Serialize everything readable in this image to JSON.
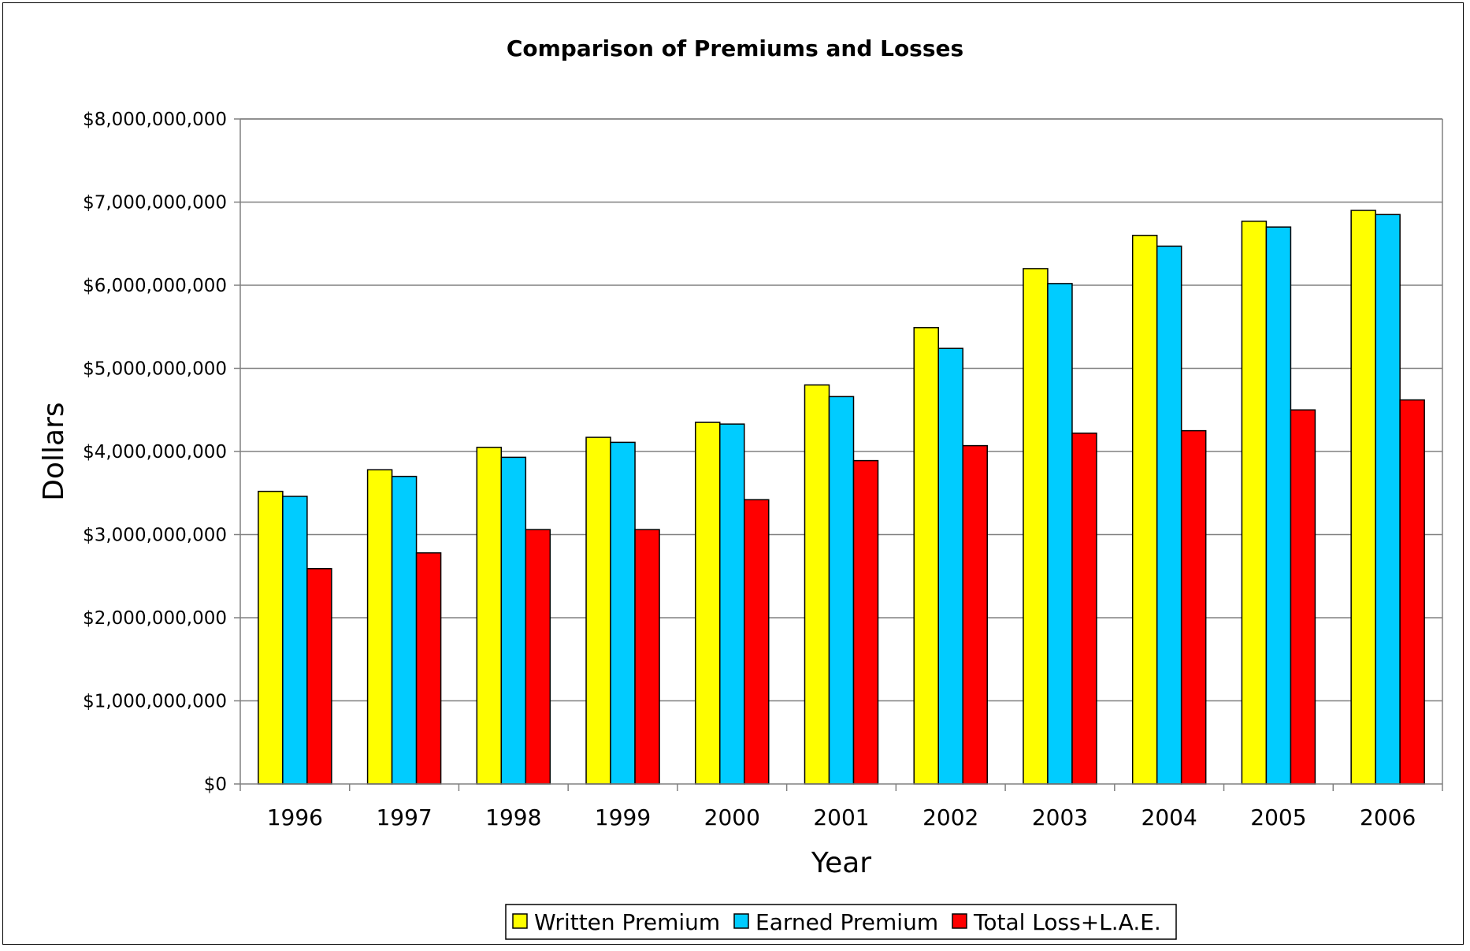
{
  "chart_data": {
    "type": "bar",
    "title": "Comparison of Premiums and Losses",
    "xlabel": "Year",
    "ylabel": "Dollars",
    "ylim": [
      0,
      8000000000
    ],
    "yticks": [
      0,
      1000000000,
      2000000000,
      3000000000,
      4000000000,
      5000000000,
      6000000000,
      7000000000,
      8000000000
    ],
    "ytick_labels": [
      "$0",
      "$1,000,000,000",
      "$2,000,000,000",
      "$3,000,000,000",
      "$4,000,000,000",
      "$5,000,000,000",
      "$6,000,000,000",
      "$7,000,000,000",
      "$8,000,000,000"
    ],
    "categories": [
      "1996",
      "1997",
      "1998",
      "1999",
      "2000",
      "2001",
      "2002",
      "2003",
      "2004",
      "2005",
      "2006"
    ],
    "grid": true,
    "legend_position": "bottom",
    "series": [
      {
        "name": "Written Premium",
        "color": "#ffff00",
        "values": [
          3520000000,
          3780000000,
          4050000000,
          4170000000,
          4350000000,
          4800000000,
          5490000000,
          6200000000,
          6600000000,
          6770000000,
          6900000000
        ]
      },
      {
        "name": "Earned Premium",
        "color": "#00ccff",
        "values": [
          3460000000,
          3700000000,
          3930000000,
          4110000000,
          4330000000,
          4660000000,
          5240000000,
          6020000000,
          6470000000,
          6700000000,
          6850000000
        ]
      },
      {
        "name": "Total Loss+L.A.E.",
        "color": "#ff0000",
        "values": [
          2590000000,
          2780000000,
          3060000000,
          3060000000,
          3420000000,
          3890000000,
          4070000000,
          4220000000,
          4250000000,
          4500000000,
          4620000000
        ]
      }
    ]
  }
}
